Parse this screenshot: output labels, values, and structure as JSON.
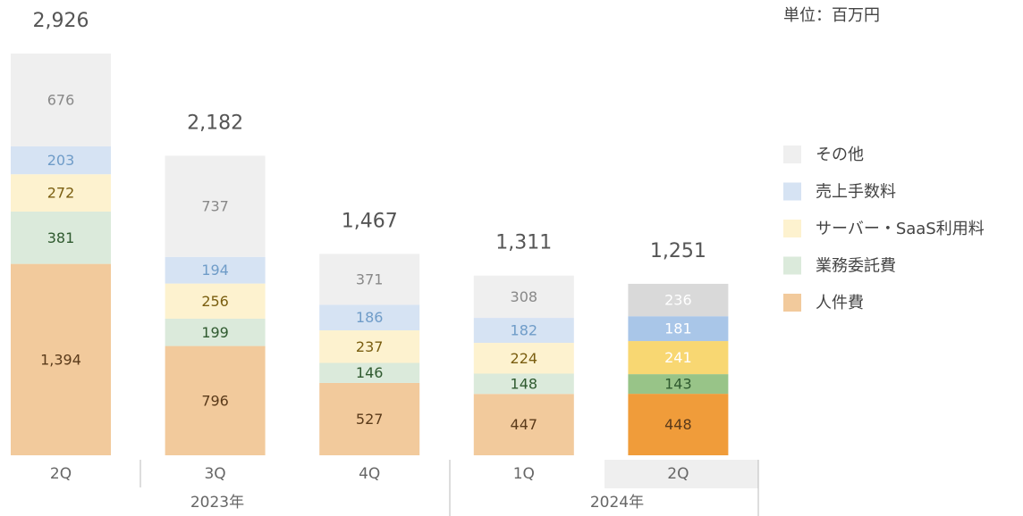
{
  "chart_data": {
    "type": "stacked_bar",
    "unit_label": "単位：百万円",
    "categories": [
      "2Q",
      "3Q",
      "4Q",
      "1Q",
      "2Q"
    ],
    "groups": [
      {
        "label": "2023年"
      },
      {
        "label": "2024年"
      }
    ],
    "totals": [
      2926,
      2182,
      1467,
      1311,
      1251
    ],
    "total_labels": [
      "2,926",
      "2,182",
      "1,467",
      "1,311",
      "1,251"
    ],
    "series": [
      {
        "name": "人件費",
        "color": "#f2ca9c",
        "highlight_color": "#f09c3a",
        "label_color": "#5a3a1a",
        "values": [
          1394,
          796,
          527,
          447,
          448
        ],
        "value_labels": [
          "1,394",
          "796",
          "527",
          "447",
          "448"
        ]
      },
      {
        "name": "業務委託費",
        "color": "#dbeadb",
        "highlight_color": "#98c488",
        "label_color": "#2f5a2f",
        "values": [
          381,
          199,
          146,
          148,
          143
        ]
      },
      {
        "name": "サーバー・SaaS利用料",
        "color": "#fdf2cf",
        "highlight_color": "#f8d772",
        "label_color": "#7a5e10",
        "values": [
          272,
          256,
          237,
          224,
          241
        ]
      },
      {
        "name": "売上手数料",
        "color": "#d6e3f3",
        "highlight_color": "#a9c6e8",
        "label_color": "#6f9cc8",
        "values": [
          203,
          194,
          186,
          182,
          181
        ]
      },
      {
        "name": "その他",
        "color": "#efefef",
        "highlight_color": "#d9d9d9",
        "label_color": "#888888",
        "values": [
          676,
          737,
          371,
          308,
          236
        ]
      }
    ]
  }
}
